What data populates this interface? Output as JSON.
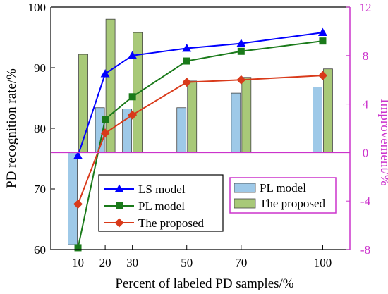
{
  "chart_data": {
    "type": "bar+line",
    "x": [
      10,
      20,
      30,
      50,
      70,
      100
    ],
    "xlabel": "Percent of labeled PD samples/%",
    "ylabel_left": "PD recognition rate/%",
    "ylabel_right": "Improvement/%",
    "ylim_left": [
      60,
      100
    ],
    "ylim_right": [
      -8,
      12
    ],
    "yticks_left": [
      60,
      70,
      80,
      90,
      100
    ],
    "yticks_right": [
      -8,
      -4,
      0,
      4,
      8,
      12
    ],
    "line_series": [
      {
        "name": "LS model",
        "color": "#0000ff",
        "marker": "triangle",
        "values": [
          75.5,
          89.0,
          92.0,
          93.2,
          94.0,
          95.8
        ]
      },
      {
        "name": "PL model",
        "color": "#1a7a1a",
        "marker": "square",
        "values": [
          60.3,
          81.5,
          85.2,
          91.1,
          92.7,
          94.4
        ]
      },
      {
        "name": "The proposed",
        "color": "#d93a1a",
        "marker": "diamond",
        "values": [
          67.5,
          79.2,
          82.2,
          87.6,
          88.0,
          88.7
        ]
      }
    ],
    "bar_series": [
      {
        "name": "PL model",
        "color": "#9ec9e8",
        "values": [
          -7.6,
          3.7,
          3.6,
          3.7,
          4.9,
          5.4
        ]
      },
      {
        "name": "The proposed",
        "color": "#a8c978",
        "values": [
          8.1,
          11.0,
          9.9,
          5.9,
          6.2,
          6.9
        ]
      }
    ],
    "legend_lines_position": "bottom-left",
    "legend_bars_position": "bottom-right"
  }
}
